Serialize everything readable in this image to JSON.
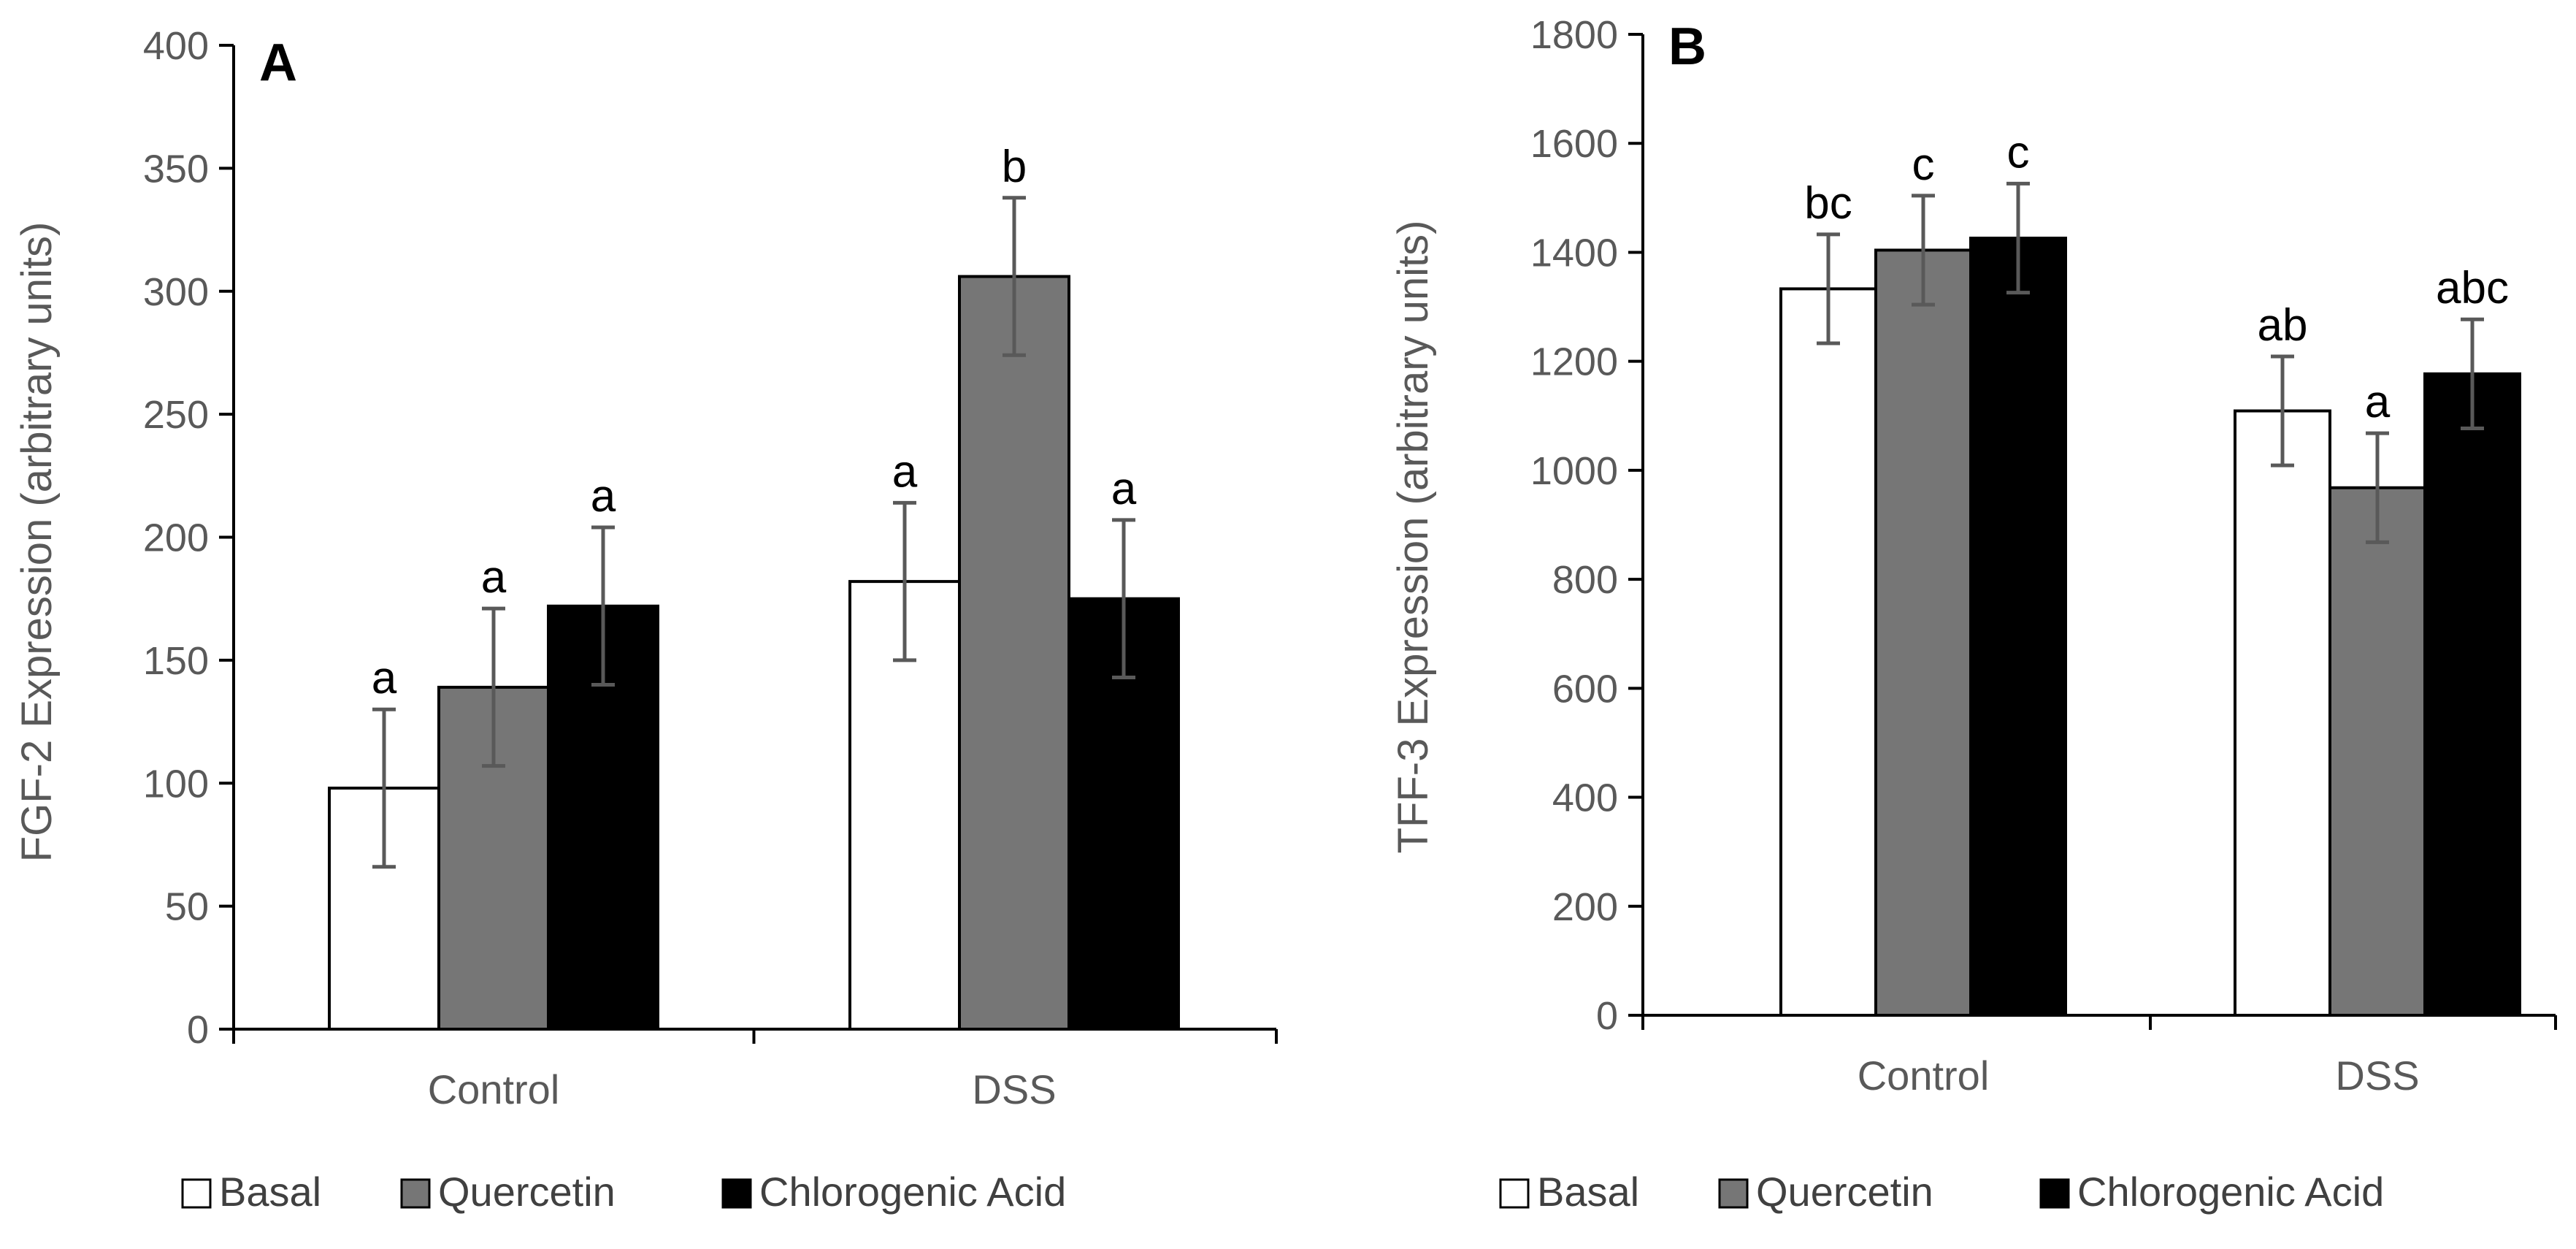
{
  "colors": {
    "Basal": "#ffffff",
    "Quercetin": "#767676",
    "Chlorogenic Acid": "#000000",
    "axis": "#000000",
    "error_bar": "#595959",
    "tick_text": "#595959"
  },
  "chart_data": [
    {
      "type": "bar",
      "panel_label": "A",
      "ylabel": "FGF-2 Expression (arbitrary units)",
      "xlabel": "",
      "categories": [
        "Control",
        "DSS"
      ],
      "ylim": [
        0,
        400
      ],
      "yticks": [
        0,
        50,
        100,
        150,
        200,
        250,
        300,
        350,
        400
      ],
      "grid": false,
      "legend_position": "bottom",
      "series": [
        {
          "name": "Basal",
          "values": [
            98,
            182
          ],
          "errors": [
            32,
            32
          ],
          "labels": [
            "a",
            "a"
          ]
        },
        {
          "name": "Quercetin",
          "values": [
            139,
            306
          ],
          "errors": [
            32,
            32
          ],
          "labels": [
            "a",
            "b"
          ]
        },
        {
          "name": "Chlorogenic Acid",
          "values": [
            172,
            175
          ],
          "errors": [
            32,
            32
          ],
          "labels": [
            "a",
            "a"
          ]
        }
      ]
    },
    {
      "type": "bar",
      "panel_label": "B",
      "ylabel": "TFF-3 Expression (arbitrary units)",
      "xlabel": "",
      "categories": [
        "Control",
        "DSS"
      ],
      "ylim": [
        0,
        1800
      ],
      "yticks": [
        0,
        200,
        400,
        600,
        800,
        1000,
        1200,
        1400,
        1600,
        1800
      ],
      "grid": false,
      "legend_position": "bottom",
      "series": [
        {
          "name": "Basal",
          "values": [
            1333,
            1109
          ],
          "errors": [
            100,
            100
          ],
          "labels": [
            "bc",
            "ab"
          ]
        },
        {
          "name": "Quercetin",
          "values": [
            1404,
            968
          ],
          "errors": [
            100,
            100
          ],
          "labels": [
            "c",
            "a"
          ]
        },
        {
          "name": "Chlorogenic Acid",
          "values": [
            1426,
            1177
          ],
          "errors": [
            100,
            100
          ],
          "labels": [
            "c",
            "abc"
          ]
        }
      ]
    }
  ]
}
